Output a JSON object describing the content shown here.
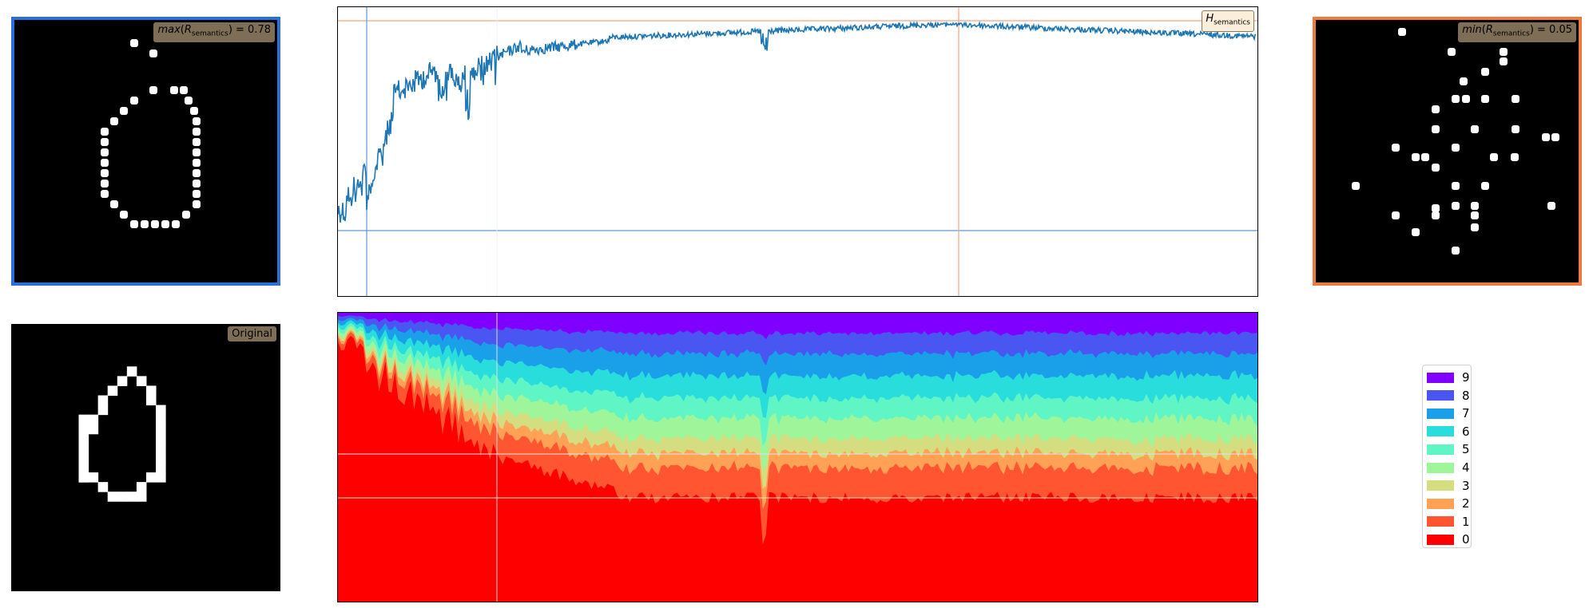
{
  "panels": {
    "max_tag": {
      "fn": "max",
      "sym": "R",
      "sub": "semantics",
      "value": "0.78"
    },
    "min_tag": {
      "fn": "min",
      "sym": "R",
      "sub": "semantics",
      "value": "0.05"
    },
    "original_tag": "Original",
    "max_border_color": "#2a6fdb",
    "min_border_color": "#ee7a3e"
  },
  "entropy_label": {
    "sym": "H",
    "sub": "semantics"
  },
  "legend": {
    "items": [
      {
        "label": "9",
        "color": "#8000ff"
      },
      {
        "label": "8",
        "color": "#4a56f2"
      },
      {
        "label": "7",
        "color": "#1aa0e8"
      },
      {
        "label": "6",
        "color": "#2adddd"
      },
      {
        "label": "5",
        "color": "#5ff5c5"
      },
      {
        "label": "4",
        "color": "#9ef59a"
      },
      {
        "label": "3",
        "color": "#d4dd80"
      },
      {
        "label": "2",
        "color": "#ffa256"
      },
      {
        "label": "1",
        "color": "#ff5530"
      },
      {
        "label": "0",
        "color": "#ff0000"
      }
    ]
  },
  "chart_data": [
    {
      "type": "line",
      "title": "",
      "xlabel": "",
      "ylabel": "",
      "series": [
        {
          "name": "",
          "color": "#1f77b4"
        }
      ],
      "min_line_color": "#5b9bd5",
      "max_line_color": "#f4a582",
      "grid": false
    },
    {
      "type": "area",
      "title": "",
      "stacked": true,
      "series_order_bottom_to_top": [
        "0",
        "1",
        "2",
        "3",
        "4",
        "5",
        "6",
        "7",
        "8",
        "9"
      ],
      "grid": false
    }
  ]
}
